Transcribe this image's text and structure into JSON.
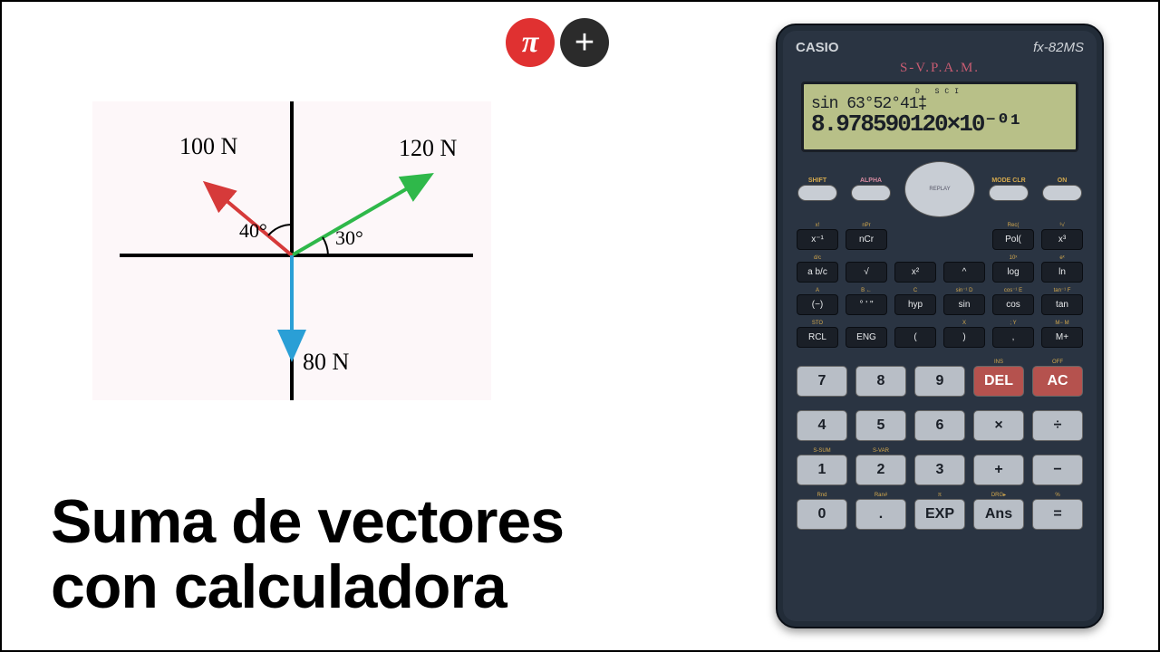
{
  "logo": {
    "pi": "π",
    "plus": "+"
  },
  "title": "Suma de vectores\ncon calculadora",
  "diagram": {
    "background": "#fdf7f9",
    "axis_color": "#000000",
    "axis_width": 3,
    "handwritten_font": "Comic Sans MS, cursive",
    "vectors": [
      {
        "label": "120 N",
        "angle_label": "30°",
        "color": "#2fb84a",
        "angle_deg": 30,
        "length": 170
      },
      {
        "label": "100 N",
        "angle_label": "40°",
        "color": "#d63a3a",
        "angle_deg": 140,
        "length": 120
      },
      {
        "label": "80 N",
        "angle_label": "",
        "color": "#2a9fd6",
        "angle_deg": 270,
        "length": 110
      }
    ]
  },
  "calc": {
    "brand": "CASIO",
    "model": "fx-82MS",
    "svpam": "S-V.P.A.M.",
    "lcd": {
      "status": "D   SCI",
      "line1": "sin 63°52°41‡",
      "line2": "8.978590120×10⁻⁰¹"
    },
    "top_labels": {
      "shift": "SHIFT",
      "alpha": "ALPHA",
      "mode": "MODE CLR",
      "on": "ON"
    },
    "fn_rows": [
      [
        {
          "sup": "x!",
          "label": "x⁻¹"
        },
        {
          "sup": "nPr",
          "label": "nCr"
        },
        {
          "sup": "",
          "label": ""
        },
        {
          "sup": "",
          "label": ""
        },
        {
          "sup": "Rec(",
          "label": "Pol("
        },
        {
          "sup": "³√",
          "label": "x³"
        }
      ],
      [
        {
          "sup": "d/c",
          "label": "a b/c"
        },
        {
          "sup": "",
          "label": "√"
        },
        {
          "sup": "",
          "label": "x²"
        },
        {
          "sup": "",
          "label": "^"
        },
        {
          "sup": "10ˣ",
          "label": "log"
        },
        {
          "sup": "eˣ",
          "label": "ln"
        }
      ],
      [
        {
          "sup": "A",
          "label": "(−)"
        },
        {
          "sup": "B ←",
          "label": "° ' \""
        },
        {
          "sup": "C",
          "label": "hyp"
        },
        {
          "sup": "sin⁻¹ D",
          "label": "sin"
        },
        {
          "sup": "cos⁻¹ E",
          "label": "cos"
        },
        {
          "sup": "tan⁻¹ F",
          "label": "tan"
        }
      ],
      [
        {
          "sup": "STO",
          "label": "RCL"
        },
        {
          "sup": "",
          "label": "ENG"
        },
        {
          "sup": "",
          "label": "("
        },
        {
          "sup": "X",
          "label": ")"
        },
        {
          "sup": "; Y",
          "label": ","
        },
        {
          "sup": "M− M",
          "label": "M+"
        }
      ]
    ],
    "num_rows": [
      [
        {
          "sup": "",
          "label": "7"
        },
        {
          "sup": "",
          "label": "8"
        },
        {
          "sup": "",
          "label": "9"
        },
        {
          "sup": "INS",
          "label": "DEL",
          "red": true
        },
        {
          "sup": "OFF",
          "label": "AC",
          "red": true
        }
      ],
      [
        {
          "sup": "",
          "label": "4"
        },
        {
          "sup": "",
          "label": "5"
        },
        {
          "sup": "",
          "label": "6"
        },
        {
          "sup": "",
          "label": "×"
        },
        {
          "sup": "",
          "label": "÷"
        }
      ],
      [
        {
          "sup": "S-SUM",
          "label": "1"
        },
        {
          "sup": "S-VAR",
          "label": "2"
        },
        {
          "sup": "",
          "label": "3"
        },
        {
          "sup": "",
          "label": "+"
        },
        {
          "sup": "",
          "label": "−"
        }
      ],
      [
        {
          "sup": "Rnd",
          "label": "0"
        },
        {
          "sup": "Ran#",
          "label": "."
        },
        {
          "sup": "π",
          "label": "EXP"
        },
        {
          "sup": "DRG▸",
          "label": "Ans"
        },
        {
          "sup": "%",
          "label": "="
        }
      ]
    ]
  }
}
